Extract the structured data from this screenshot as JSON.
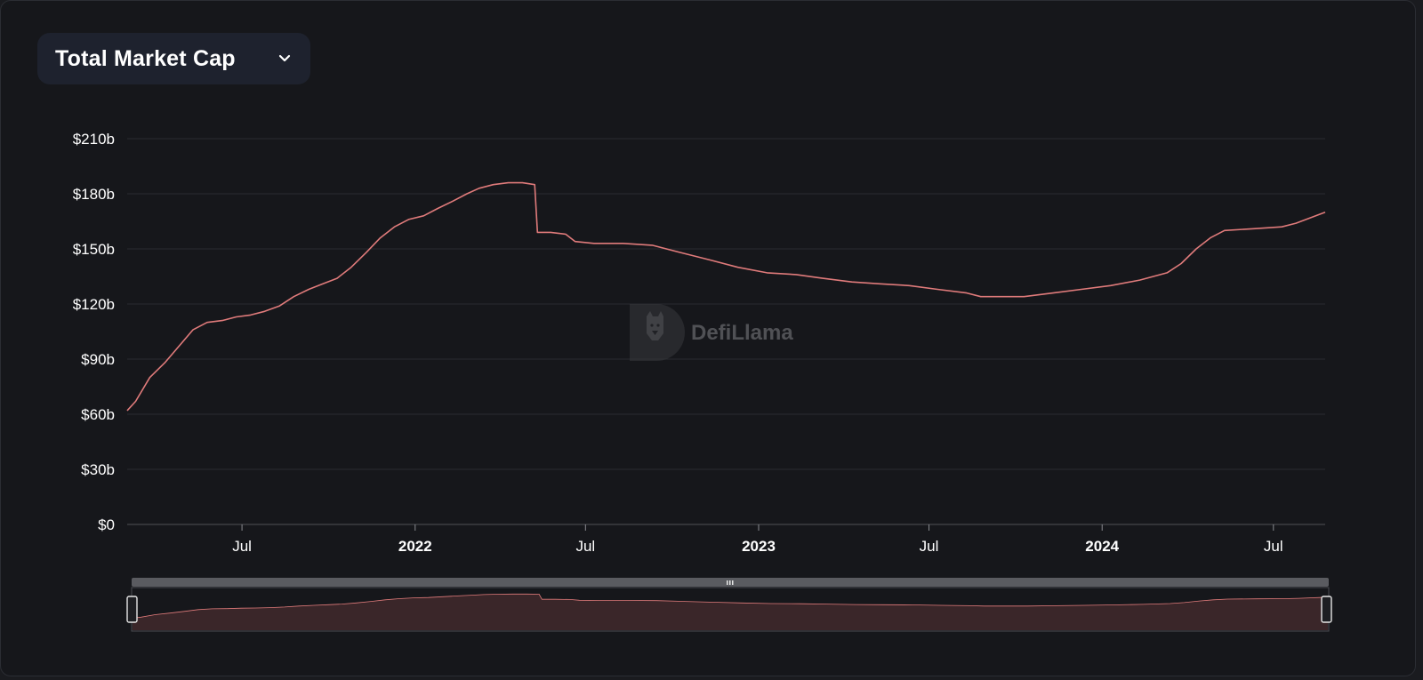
{
  "selector": {
    "label": "Total Market Cap",
    "icon": "chevron-down-icon"
  },
  "watermark": {
    "text": "DefiLlama",
    "icon": "llama-logo-icon"
  },
  "colors": {
    "line": "#e07b7b",
    "area": "#3a2629",
    "grid": "#2a2b30",
    "text": "#ffffff",
    "zoomHandle": "#5a5b60"
  },
  "chart_data": {
    "type": "line",
    "title": "",
    "xlabel": "",
    "ylabel": "",
    "ylim": [
      0,
      210
    ],
    "xlim": [
      "2021-03-01",
      "2024-08-25"
    ],
    "y_ticks": [
      {
        "value": 0,
        "label": "$0"
      },
      {
        "value": 30,
        "label": "$30b"
      },
      {
        "value": 60,
        "label": "$60b"
      },
      {
        "value": 90,
        "label": "$90b"
      },
      {
        "value": 120,
        "label": "$120b"
      },
      {
        "value": 150,
        "label": "$150b"
      },
      {
        "value": 180,
        "label": "$180b"
      },
      {
        "value": 210,
        "label": "$210b"
      }
    ],
    "x_ticks": [
      {
        "date": "2021-07-01",
        "label": "Jul",
        "bold": false
      },
      {
        "date": "2022-01-01",
        "label": "2022",
        "bold": true
      },
      {
        "date": "2022-07-01",
        "label": "Jul",
        "bold": false
      },
      {
        "date": "2023-01-01",
        "label": "2023",
        "bold": true
      },
      {
        "date": "2023-07-01",
        "label": "Jul",
        "bold": false
      },
      {
        "date": "2024-01-01",
        "label": "2024",
        "bold": true
      },
      {
        "date": "2024-07-01",
        "label": "Jul",
        "bold": false
      }
    ],
    "grid": true,
    "legend": "none",
    "series": [
      {
        "x": [
          "2021-03-01",
          "2021-03-10",
          "2021-03-25",
          "2021-04-10",
          "2021-04-25",
          "2021-05-10",
          "2021-05-25",
          "2021-06-10",
          "2021-06-25",
          "2021-07-10",
          "2021-07-25",
          "2021-08-10",
          "2021-08-25",
          "2021-09-10",
          "2021-09-25",
          "2021-10-10",
          "2021-10-25",
          "2021-11-10",
          "2021-11-25",
          "2021-12-10",
          "2021-12-25",
          "2022-01-10",
          "2022-01-25",
          "2022-02-10",
          "2022-02-25",
          "2022-03-10",
          "2022-03-25",
          "2022-04-10",
          "2022-04-25",
          "2022-05-08",
          "2022-05-11",
          "2022-05-25",
          "2022-06-10",
          "2022-06-20",
          "2022-07-10",
          "2022-08-10",
          "2022-09-10",
          "2022-10-10",
          "2022-11-10",
          "2022-12-10",
          "2023-01-10",
          "2023-02-10",
          "2023-03-10",
          "2023-04-10",
          "2023-05-10",
          "2023-06-10",
          "2023-07-10",
          "2023-08-10",
          "2023-08-25",
          "2023-09-10",
          "2023-10-10",
          "2023-11-10",
          "2023-12-10",
          "2024-01-10",
          "2024-02-10",
          "2024-03-10",
          "2024-03-25",
          "2024-04-10",
          "2024-04-25",
          "2024-05-10",
          "2024-06-10",
          "2024-07-10",
          "2024-07-25",
          "2024-08-25"
        ],
        "y": [
          62,
          67,
          80,
          88,
          97,
          106,
          110,
          111,
          113,
          114,
          116,
          119,
          124,
          128,
          131,
          134,
          140,
          148,
          156,
          162,
          166,
          168,
          172,
          176,
          180,
          183,
          185,
          186,
          186,
          185,
          159,
          159,
          158,
          154,
          153,
          153,
          152,
          148,
          144,
          140,
          137,
          136,
          134,
          132,
          131,
          130,
          128,
          126,
          124,
          124,
          124,
          126,
          128,
          130,
          133,
          137,
          142,
          150,
          156,
          160,
          161,
          162,
          164,
          170
        ]
      }
    ]
  }
}
